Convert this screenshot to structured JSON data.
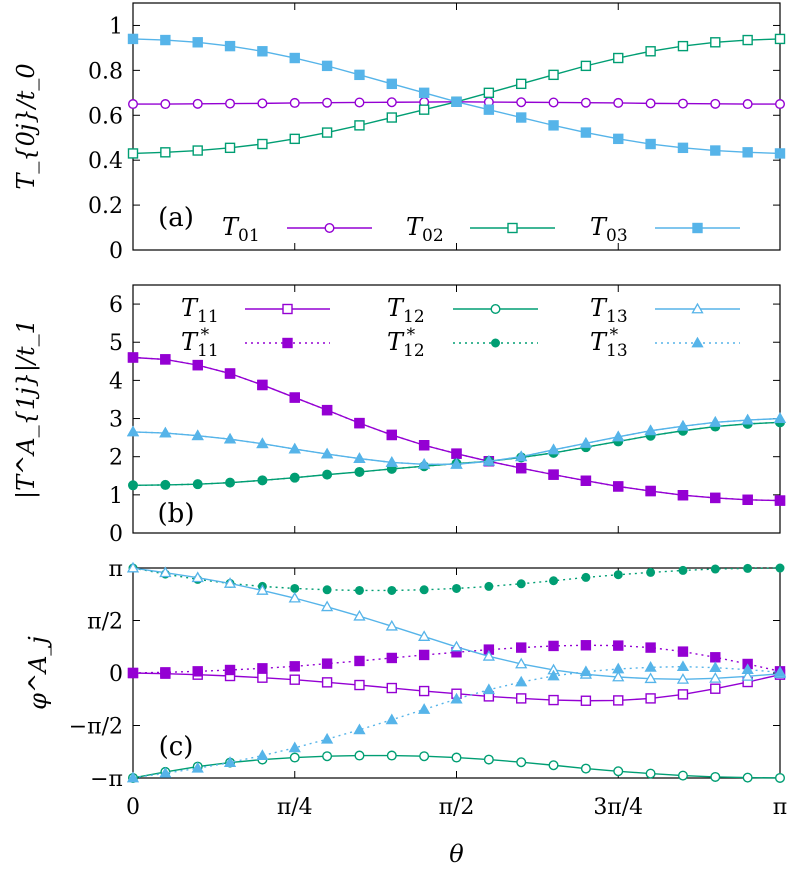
{
  "colors": {
    "purple": "#9400d3",
    "green": "#009e73",
    "blue": "#56b4e9"
  },
  "chart_data": [
    {
      "type": "line",
      "panel_label": "(a)",
      "ylabel": "T_{0j}/t_0",
      "xlabel": "",
      "xlim": [
        0,
        3.14159
      ],
      "ylim": [
        0,
        1.1
      ],
      "yticks": [
        0,
        0.2,
        0.4,
        0.6,
        0.8,
        1
      ],
      "ytick_labels": [
        "0",
        "0.2",
        "0.4",
        "0.6",
        "0.8",
        "1"
      ],
      "grid": false,
      "legend_position": "bottom",
      "series": [
        {
          "name": "T01",
          "base": "T",
          "sub": "01",
          "sup": "",
          "color": "purple",
          "marker": "open-circle",
          "dash": "solid",
          "x": [
            0,
            0.1571,
            0.3142,
            0.4712,
            0.6283,
            0.7854,
            0.9425,
            1.0996,
            1.2566,
            1.4137,
            1.5708,
            1.7279,
            1.885,
            2.042,
            2.1991,
            2.3562,
            2.5133,
            2.6704,
            2.8274,
            2.9845,
            3.1416
          ],
          "y": [
            0.65,
            0.65,
            0.651,
            0.652,
            0.653,
            0.655,
            0.656,
            0.657,
            0.658,
            0.659,
            0.66,
            0.659,
            0.658,
            0.657,
            0.656,
            0.655,
            0.653,
            0.652,
            0.651,
            0.65,
            0.65
          ]
        },
        {
          "name": "T02",
          "base": "T",
          "sub": "02",
          "sup": "",
          "color": "green",
          "marker": "open-square",
          "dash": "solid",
          "x": [
            0,
            0.1571,
            0.3142,
            0.4712,
            0.6283,
            0.7854,
            0.9425,
            1.0996,
            1.2566,
            1.4137,
            1.5708,
            1.7279,
            1.885,
            2.042,
            2.1991,
            2.3562,
            2.5133,
            2.6704,
            2.8274,
            2.9845,
            3.1416
          ],
          "y": [
            0.43,
            0.435,
            0.443,
            0.455,
            0.472,
            0.495,
            0.523,
            0.555,
            0.59,
            0.625,
            0.66,
            0.7,
            0.74,
            0.78,
            0.82,
            0.855,
            0.885,
            0.908,
            0.925,
            0.935,
            0.94
          ]
        },
        {
          "name": "T03",
          "base": "T",
          "sub": "03",
          "sup": "",
          "color": "blue",
          "marker": "filled-square",
          "dash": "solid",
          "x": [
            0,
            0.1571,
            0.3142,
            0.4712,
            0.6283,
            0.7854,
            0.9425,
            1.0996,
            1.2566,
            1.4137,
            1.5708,
            1.7279,
            1.885,
            2.042,
            2.1991,
            2.3562,
            2.5133,
            2.6704,
            2.8274,
            2.9845,
            3.1416
          ],
          "y": [
            0.94,
            0.935,
            0.925,
            0.908,
            0.885,
            0.855,
            0.82,
            0.78,
            0.74,
            0.7,
            0.66,
            0.625,
            0.59,
            0.555,
            0.523,
            0.495,
            0.472,
            0.455,
            0.443,
            0.435,
            0.43
          ]
        }
      ]
    },
    {
      "type": "line",
      "panel_label": "(b)",
      "ylabel": "|T^A_{1j}|/t_1",
      "xlabel": "",
      "xlim": [
        0,
        3.14159
      ],
      "ylim": [
        0,
        6.5
      ],
      "yticks": [
        0,
        1,
        2,
        3,
        4,
        5,
        6
      ],
      "ytick_labels": [
        "0",
        "1",
        "2",
        "3",
        "4",
        "5",
        "6"
      ],
      "grid": false,
      "legend_position": "top",
      "series": [
        {
          "name": "T11",
          "base": "T",
          "sub": "11",
          "sup": "",
          "color": "purple",
          "marker": "open-square",
          "dash": "solid",
          "x": [
            0,
            0.1571,
            0.3142,
            0.4712,
            0.6283,
            0.7854,
            0.9425,
            1.0996,
            1.2566,
            1.4137,
            1.5708,
            1.7279,
            1.885,
            2.042,
            2.1991,
            2.3562,
            2.5133,
            2.6704,
            2.8274,
            2.9845,
            3.1416
          ],
          "y": [
            4.6,
            4.55,
            4.4,
            4.18,
            3.88,
            3.55,
            3.22,
            2.88,
            2.57,
            2.3,
            2.08,
            1.88,
            1.7,
            1.53,
            1.37,
            1.22,
            1.1,
            0.99,
            0.92,
            0.87,
            0.85
          ]
        },
        {
          "name": "T11*",
          "base": "T",
          "sub": "11",
          "sup": "*",
          "color": "purple",
          "marker": "filled-square",
          "dash": "dotted",
          "x": [
            0,
            0.1571,
            0.3142,
            0.4712,
            0.6283,
            0.7854,
            0.9425,
            1.0996,
            1.2566,
            1.4137,
            1.5708,
            1.7279,
            1.885,
            2.042,
            2.1991,
            2.3562,
            2.5133,
            2.6704,
            2.8274,
            2.9845,
            3.1416
          ],
          "y": [
            4.6,
            4.55,
            4.4,
            4.18,
            3.88,
            3.55,
            3.22,
            2.88,
            2.57,
            2.3,
            2.08,
            1.88,
            1.7,
            1.53,
            1.37,
            1.22,
            1.1,
            0.99,
            0.92,
            0.87,
            0.85
          ]
        },
        {
          "name": "T12",
          "base": "T",
          "sub": "12",
          "sup": "",
          "color": "green",
          "marker": "open-circle",
          "dash": "solid",
          "x": [
            0,
            0.1571,
            0.3142,
            0.4712,
            0.6283,
            0.7854,
            0.9425,
            1.0996,
            1.2566,
            1.4137,
            1.5708,
            1.7279,
            1.885,
            2.042,
            2.1991,
            2.3562,
            2.5133,
            2.6704,
            2.8274,
            2.9845,
            3.1416
          ],
          "y": [
            1.25,
            1.26,
            1.28,
            1.32,
            1.38,
            1.45,
            1.53,
            1.6,
            1.68,
            1.75,
            1.82,
            1.88,
            1.98,
            2.1,
            2.25,
            2.4,
            2.55,
            2.68,
            2.79,
            2.86,
            2.9
          ]
        },
        {
          "name": "T12*",
          "base": "T",
          "sub": "12",
          "sup": "*",
          "color": "green",
          "marker": "filled-circle",
          "dash": "dotted",
          "x": [
            0,
            0.1571,
            0.3142,
            0.4712,
            0.6283,
            0.7854,
            0.9425,
            1.0996,
            1.2566,
            1.4137,
            1.5708,
            1.7279,
            1.885,
            2.042,
            2.1991,
            2.3562,
            2.5133,
            2.6704,
            2.8274,
            2.9845,
            3.1416
          ],
          "y": [
            1.25,
            1.26,
            1.28,
            1.32,
            1.38,
            1.45,
            1.53,
            1.6,
            1.68,
            1.75,
            1.82,
            1.88,
            1.98,
            2.1,
            2.25,
            2.4,
            2.55,
            2.68,
            2.79,
            2.86,
            2.9
          ]
        },
        {
          "name": "T13",
          "base": "T",
          "sub": "13",
          "sup": "",
          "color": "blue",
          "marker": "open-triangle",
          "dash": "solid",
          "x": [
            0,
            0.1571,
            0.3142,
            0.4712,
            0.6283,
            0.7854,
            0.9425,
            1.0996,
            1.2566,
            1.4137,
            1.5708,
            1.7279,
            1.885,
            2.042,
            2.1991,
            2.3562,
            2.5133,
            2.6704,
            2.8274,
            2.9845,
            3.1416
          ],
          "y": [
            2.65,
            2.62,
            2.55,
            2.46,
            2.34,
            2.2,
            2.07,
            1.95,
            1.85,
            1.8,
            1.8,
            1.88,
            2.0,
            2.18,
            2.35,
            2.52,
            2.68,
            2.8,
            2.9,
            2.96,
            3.0
          ]
        },
        {
          "name": "T13*",
          "base": "T",
          "sub": "13",
          "sup": "*",
          "color": "blue",
          "marker": "filled-triangle",
          "dash": "dotted",
          "x": [
            0,
            0.1571,
            0.3142,
            0.4712,
            0.6283,
            0.7854,
            0.9425,
            1.0996,
            1.2566,
            1.4137,
            1.5708,
            1.7279,
            1.885,
            2.042,
            2.1991,
            2.3562,
            2.5133,
            2.6704,
            2.8274,
            2.9845,
            3.1416
          ],
          "y": [
            2.65,
            2.62,
            2.55,
            2.46,
            2.34,
            2.2,
            2.07,
            1.95,
            1.85,
            1.8,
            1.8,
            1.88,
            2.0,
            2.18,
            2.35,
            2.52,
            2.68,
            2.8,
            2.9,
            2.96,
            3.0
          ]
        }
      ]
    },
    {
      "type": "line",
      "panel_label": "(c)",
      "ylabel": "φ^A_j",
      "xlabel": "θ",
      "xlim": [
        0,
        3.14159
      ],
      "ylim": [
        -3.14159,
        3.14159
      ],
      "yticks": [
        -3.14159,
        -1.5708,
        0,
        1.5708,
        3.14159
      ],
      "ytick_labels": [
        "−π",
        "−π/2",
        "0",
        "π/2",
        "π"
      ],
      "xticks": [
        0,
        0.7854,
        1.5708,
        2.3562,
        3.14159
      ],
      "xtick_labels": [
        "0",
        "π/4",
        "π/2",
        "3π/4",
        "π"
      ],
      "grid": false,
      "series": [
        {
          "name": "T11",
          "color": "purple",
          "marker": "open-square",
          "dash": "solid",
          "x": [
            0,
            0.1571,
            0.3142,
            0.4712,
            0.6283,
            0.7854,
            0.9425,
            1.0996,
            1.2566,
            1.4137,
            1.5708,
            1.7279,
            1.885,
            2.042,
            2.1991,
            2.3562,
            2.5133,
            2.6704,
            2.8274,
            2.9845,
            3.1416
          ],
          "y": [
            0,
            -0.02,
            -0.05,
            -0.09,
            -0.14,
            -0.2,
            -0.28,
            -0.36,
            -0.45,
            -0.54,
            -0.62,
            -0.7,
            -0.76,
            -0.81,
            -0.83,
            -0.82,
            -0.76,
            -0.64,
            -0.47,
            -0.27,
            -0.05
          ]
        },
        {
          "name": "T11*",
          "color": "purple",
          "marker": "filled-square",
          "dash": "dotted",
          "x": [
            0,
            0.1571,
            0.3142,
            0.4712,
            0.6283,
            0.7854,
            0.9425,
            1.0996,
            1.2566,
            1.4137,
            1.5708,
            1.7279,
            1.885,
            2.042,
            2.1991,
            2.3562,
            2.5133,
            2.6704,
            2.8274,
            2.9845,
            3.1416
          ],
          "y": [
            0,
            0.02,
            0.05,
            0.09,
            0.14,
            0.2,
            0.28,
            0.36,
            0.45,
            0.54,
            0.62,
            0.7,
            0.76,
            0.81,
            0.83,
            0.82,
            0.76,
            0.64,
            0.47,
            0.27,
            0.05
          ]
        },
        {
          "name": "T12",
          "color": "green",
          "marker": "open-circle",
          "dash": "solid",
          "x": [
            0,
            0.1571,
            0.3142,
            0.4712,
            0.6283,
            0.7854,
            0.9425,
            1.0996,
            1.2566,
            1.4137,
            1.5708,
            1.7279,
            1.885,
            2.042,
            2.1991,
            2.3562,
            2.5133,
            2.6704,
            2.8274,
            2.9845,
            3.1416
          ],
          "y": [
            -3.14,
            -2.96,
            -2.8,
            -2.68,
            -2.59,
            -2.53,
            -2.49,
            -2.47,
            -2.47,
            -2.49,
            -2.53,
            -2.59,
            -2.67,
            -2.76,
            -2.86,
            -2.94,
            -3.01,
            -3.07,
            -3.11,
            -3.13,
            -3.14
          ]
        },
        {
          "name": "T12*",
          "color": "green",
          "marker": "filled-circle",
          "dash": "dotted",
          "x": [
            0,
            0.1571,
            0.3142,
            0.4712,
            0.6283,
            0.7854,
            0.9425,
            1.0996,
            1.2566,
            1.4137,
            1.5708,
            1.7279,
            1.885,
            2.042,
            2.1991,
            2.3562,
            2.5133,
            2.6704,
            2.8274,
            2.9845,
            3.1416
          ],
          "y": [
            3.14,
            2.96,
            2.8,
            2.68,
            2.59,
            2.53,
            2.49,
            2.47,
            2.47,
            2.49,
            2.53,
            2.59,
            2.67,
            2.76,
            2.86,
            2.94,
            3.01,
            3.07,
            3.11,
            3.13,
            3.14
          ]
        },
        {
          "name": "T13",
          "color": "blue",
          "marker": "open-triangle",
          "dash": "solid",
          "x": [
            0,
            0.1571,
            0.3142,
            0.4712,
            0.6283,
            0.7854,
            0.9425,
            1.0996,
            1.2566,
            1.4137,
            1.5708,
            1.7279,
            1.885,
            2.042,
            2.1991,
            2.3562,
            2.5133,
            2.6704,
            2.8274,
            2.9845,
            3.1416
          ],
          "y": [
            3.14,
            3.0,
            2.85,
            2.68,
            2.47,
            2.24,
            1.98,
            1.7,
            1.4,
            1.09,
            0.78,
            0.5,
            0.27,
            0.09,
            -0.04,
            -0.12,
            -0.17,
            -0.19,
            -0.16,
            -0.1,
            -0.02
          ]
        },
        {
          "name": "T13*",
          "color": "blue",
          "marker": "filled-triangle",
          "dash": "dotted",
          "x": [
            0,
            0.1571,
            0.3142,
            0.4712,
            0.6283,
            0.7854,
            0.9425,
            1.0996,
            1.2566,
            1.4137,
            1.5708,
            1.7279,
            1.885,
            2.042,
            2.1991,
            2.3562,
            2.5133,
            2.6704,
            2.8274,
            2.9845,
            3.1416
          ],
          "y": [
            -3.14,
            -3.0,
            -2.85,
            -2.68,
            -2.47,
            -2.24,
            -1.98,
            -1.7,
            -1.4,
            -1.09,
            -0.78,
            -0.5,
            -0.27,
            -0.09,
            0.04,
            0.12,
            0.17,
            0.19,
            0.16,
            0.1,
            0.02
          ]
        }
      ]
    }
  ]
}
